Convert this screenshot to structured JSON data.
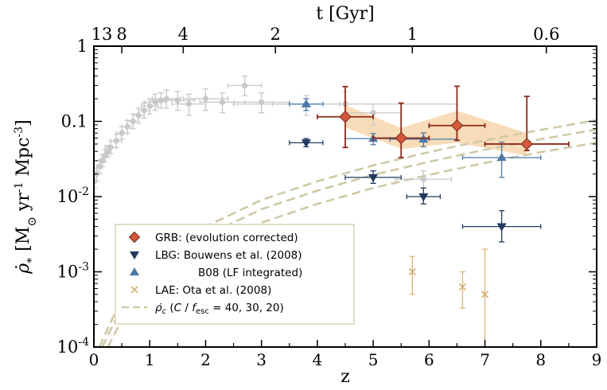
{
  "chart_data": {
    "type": "scatter",
    "xlabel": "z",
    "top_axis_label": "t [Gyr]",
    "ylabel_parts": {
      "lead": "ρ̇",
      "lead_sub": "*",
      "bracket_open": "[M",
      "sun": "⊙",
      "yr": " yr",
      "yr_exp": "-1",
      "mpc": " Mpc",
      "mpc_exp": "-3",
      "bracket_close": "]"
    },
    "xlim": [
      0,
      9
    ],
    "ylim": [
      0.0001,
      1
    ],
    "y_scale": "log",
    "x_ticks": [
      "0",
      "1",
      "2",
      "3",
      "4",
      "5",
      "6",
      "7",
      "8",
      "9"
    ],
    "y_ticks": [
      {
        "value": 0.0001,
        "base": "10",
        "exp": "-4"
      },
      {
        "value": 0.001,
        "base": "10",
        "exp": "-3"
      },
      {
        "value": 0.01,
        "base": "10",
        "exp": "-2"
      },
      {
        "value": 0.1,
        "base": "0.1",
        "exp": ""
      },
      {
        "value": 1,
        "base": "1",
        "exp": ""
      }
    ],
    "top_ticks": [
      {
        "label": "13",
        "z": 0.0
      },
      {
        "label": "8",
        "z": 0.5
      },
      {
        "label": "4",
        "z": 1.6
      },
      {
        "label": "2",
        "z": 3.25
      },
      {
        "label": "1",
        "z": 5.7
      },
      {
        "label": "0.6",
        "z": 8.1
      }
    ],
    "legend": {
      "placement": "bottom-left",
      "entries": [
        {
          "series": "grb",
          "label": "GRB: (evolution corrected)"
        },
        {
          "series": "lbg",
          "label": "LBG:  Bouwens et al. (2008)"
        },
        {
          "series": "b08",
          "label": "B08 (LF integrated)"
        },
        {
          "series": "lae",
          "label": "LAE:  Ota et al. (2008)"
        },
        {
          "series": "critical",
          "label_parts": {
            "sym": "ρ̇",
            "sub": "c",
            "pre": " (",
            "c": "C",
            "slash": " / ",
            "f": "f",
            "fsub": "esc",
            "post": " = 40, 30, 20)"
          }
        }
      ]
    },
    "series": [
      {
        "id": "grb",
        "marker": "diamond",
        "color": "#d4573b",
        "error_color": "#8b2a1a",
        "band_color": "#f7d7b0",
        "points": [
          {
            "x": 4.5,
            "y": 0.115,
            "xerr": [
              0.5,
              0.5
            ],
            "yerr": [
              0.07,
              0.175
            ]
          },
          {
            "x": 5.5,
            "y": 0.06,
            "xerr": [
              0.5,
              0.5
            ],
            "yerr": [
              0.027,
              0.115
            ]
          },
          {
            "x": 6.5,
            "y": 0.088,
            "xerr": [
              0.5,
              0.5
            ],
            "yerr": [
              0.032,
              0.205
            ]
          },
          {
            "x": 7.75,
            "y": 0.05,
            "xerr": [
              0.75,
              0.75
            ],
            "yerr": [
              0.009,
              0.165
            ]
          }
        ],
        "band": [
          {
            "x": 4.5,
            "lo": 0.083,
            "hi": 0.165
          },
          {
            "x": 5.5,
            "lo": 0.043,
            "hi": 0.082
          },
          {
            "x": 6.5,
            "lo": 0.052,
            "hi": 0.138
          },
          {
            "x": 7.75,
            "lo": 0.035,
            "hi": 0.07
          }
        ]
      },
      {
        "id": "lbg",
        "marker": "triangle-down",
        "color": "#1f3a5f",
        "points": [
          {
            "x": 3.8,
            "y": 0.052,
            "xerr": [
              0.3,
              0.3
            ],
            "yerr": [
              0.006,
              0.007
            ]
          },
          {
            "x": 5.0,
            "y": 0.018,
            "xerr": [
              0.5,
              0.5
            ],
            "yerr": [
              0.003,
              0.004
            ]
          },
          {
            "x": 5.9,
            "y": 0.01,
            "xerr": [
              0.3,
              0.3
            ],
            "yerr": [
              0.002,
              0.003
            ]
          },
          {
            "x": 7.3,
            "y": 0.004,
            "xerr": [
              0.7,
              0.7
            ],
            "yerr": [
              0.0015,
              0.0025
            ]
          }
        ]
      },
      {
        "id": "b08",
        "marker": "triangle-up",
        "color": "#4a79a8",
        "points": [
          {
            "x": 3.8,
            "y": 0.17,
            "xerr": [
              0.3,
              0.3
            ],
            "yerr": [
              0.03,
              0.03
            ]
          },
          {
            "x": 5.0,
            "y": 0.059,
            "xerr": [
              0.5,
              0.5
            ],
            "yerr": [
              0.01,
              0.01
            ]
          },
          {
            "x": 5.9,
            "y": 0.058,
            "xerr": [
              0.6,
              0.6
            ],
            "yerr": [
              0.012,
              0.012
            ]
          },
          {
            "x": 7.3,
            "y": 0.033,
            "xerr": [
              0.7,
              0.7
            ],
            "yerr": [
              0.015,
              0.02
            ]
          }
        ]
      },
      {
        "id": "lae",
        "marker": "x",
        "color": "#d9b27a",
        "points": [
          {
            "x": 5.7,
            "y": 0.001,
            "xerr": [
              0,
              0
            ],
            "yerr": [
              0.0005,
              0.0006
            ]
          },
          {
            "x": 6.6,
            "y": 0.00063,
            "xerr": [
              0,
              0
            ],
            "yerr": [
              0.0003,
              0.00037
            ]
          },
          {
            "x": 7.0,
            "y": 0.0005,
            "xerr": [
              0,
              0
            ],
            "yerr": [
              0.0004,
              0.0015
            ]
          }
        ]
      },
      {
        "id": "critical",
        "style": "dashed",
        "color": "#cfc9a6",
        "curves": [
          {
            "C_over_fesc": 40,
            "points": [
              [
                0.1,
                0.0001
              ],
              [
                0.5,
                0.00045
              ],
              [
                1,
                0.0012
              ],
              [
                2,
                0.004
              ],
              [
                3,
                0.009
              ],
              [
                4,
                0.016
              ],
              [
                5,
                0.026
              ],
              [
                6,
                0.039
              ],
              [
                7,
                0.056
              ],
              [
                8,
                0.077
              ],
              [
                9,
                0.104
              ]
            ]
          },
          {
            "C_over_fesc": 30,
            "points": [
              [
                0.15,
                0.0001
              ],
              [
                0.5,
                0.00034
              ],
              [
                1,
                0.0009
              ],
              [
                2,
                0.003
              ],
              [
                3,
                0.0068
              ],
              [
                4,
                0.012
              ],
              [
                5,
                0.0195
              ],
              [
                6,
                0.029
              ],
              [
                7,
                0.042
              ],
              [
                8,
                0.058
              ],
              [
                9,
                0.078
              ]
            ]
          },
          {
            "C_over_fesc": 20,
            "points": [
              [
                0.25,
                0.0001
              ],
              [
                0.5,
                0.00023
              ],
              [
                1,
                0.0006
              ],
              [
                2,
                0.002
              ],
              [
                3,
                0.0045
              ],
              [
                4,
                0.008
              ],
              [
                5,
                0.013
              ],
              [
                6,
                0.0195
              ],
              [
                7,
                0.028
              ],
              [
                8,
                0.039
              ],
              [
                9,
                0.052
              ]
            ]
          }
        ]
      },
      {
        "id": "compilation",
        "marker": "circle",
        "color": "#c8c8c8",
        "points": [
          {
            "x": 0.01,
            "y": 0.016,
            "xerr": [
              0.01,
              0.02
            ],
            "yerr": [
              0.003,
              0.003
            ]
          },
          {
            "x": 0.05,
            "y": 0.02,
            "xerr": [
              0.03,
              0.03
            ],
            "yerr": [
              0.004,
              0.004
            ]
          },
          {
            "x": 0.1,
            "y": 0.025,
            "xerr": [
              0.05,
              0.05
            ],
            "yerr": [
              0.005,
              0.005
            ]
          },
          {
            "x": 0.15,
            "y": 0.03,
            "xerr": [
              0.05,
              0.05
            ],
            "yerr": [
              0.005,
              0.006
            ]
          },
          {
            "x": 0.2,
            "y": 0.035,
            "xerr": [
              0.05,
              0.05
            ],
            "yerr": [
              0.006,
              0.007
            ]
          },
          {
            "x": 0.25,
            "y": 0.04,
            "xerr": [
              0.05,
              0.05
            ],
            "yerr": [
              0.006,
              0.008
            ]
          },
          {
            "x": 0.3,
            "y": 0.045,
            "xerr": [
              0.1,
              0.1
            ],
            "yerr": [
              0.008,
              0.01
            ]
          },
          {
            "x": 0.4,
            "y": 0.055,
            "xerr": [
              0.1,
              0.1
            ],
            "yerr": [
              0.01,
              0.012
            ]
          },
          {
            "x": 0.5,
            "y": 0.07,
            "xerr": [
              0.1,
              0.1
            ],
            "yerr": [
              0.012,
              0.015
            ]
          },
          {
            "x": 0.6,
            "y": 0.085,
            "xerr": [
              0.1,
              0.1
            ],
            "yerr": [
              0.015,
              0.018
            ]
          },
          {
            "x": 0.7,
            "y": 0.1,
            "xerr": [
              0.1,
              0.1
            ],
            "yerr": [
              0.02,
              0.025
            ]
          },
          {
            "x": 0.8,
            "y": 0.12,
            "xerr": [
              0.1,
              0.1
            ],
            "yerr": [
              0.025,
              0.03
            ]
          },
          {
            "x": 0.9,
            "y": 0.14,
            "xerr": [
              0.1,
              0.1
            ],
            "yerr": [
              0.03,
              0.035
            ]
          },
          {
            "x": 1.0,
            "y": 0.16,
            "xerr": [
              0.15,
              0.15
            ],
            "yerr": [
              0.035,
              0.04
            ]
          },
          {
            "x": 1.1,
            "y": 0.18,
            "xerr": [
              0.2,
              0.2
            ],
            "yerr": [
              0.04,
              0.05
            ]
          },
          {
            "x": 1.2,
            "y": 0.19,
            "xerr": [
              0.2,
              0.2
            ],
            "yerr": [
              0.04,
              0.05
            ]
          },
          {
            "x": 1.3,
            "y": 0.2,
            "xerr": [
              0.25,
              0.25
            ],
            "yerr": [
              0.05,
              0.06
            ]
          },
          {
            "x": 1.5,
            "y": 0.19,
            "xerr": [
              0.3,
              0.3
            ],
            "yerr": [
              0.05,
              0.06
            ]
          },
          {
            "x": 1.7,
            "y": 0.17,
            "xerr": [
              0.3,
              0.3
            ],
            "yerr": [
              0.05,
              0.06
            ]
          },
          {
            "x": 2.0,
            "y": 0.2,
            "xerr": [
              0.4,
              0.4
            ],
            "yerr": [
              0.06,
              0.07
            ]
          },
          {
            "x": 2.3,
            "y": 0.18,
            "xerr": [
              0.4,
              0.4
            ],
            "yerr": [
              0.05,
              0.06
            ]
          },
          {
            "x": 2.7,
            "y": 0.3,
            "xerr": [
              0.3,
              0.3
            ],
            "yerr": [
              0.08,
              0.1
            ]
          },
          {
            "x": 3.0,
            "y": 0.18,
            "xerr": [
              0.5,
              0.5
            ],
            "yerr": [
              0.05,
              0.06
            ]
          },
          {
            "x": 3.8,
            "y": 0.17,
            "xerr": [
              0.6,
              0.6
            ],
            "yerr": [
              0.05,
              0.05
            ]
          },
          {
            "x": 4.5,
            "y": 0.17,
            "xerr": [
              2.0,
              2.0
            ],
            "yerr": [
              0.06,
              0.08
            ]
          },
          {
            "x": 5.0,
            "y": 0.13,
            "xerr": [
              0.5,
              0.5
            ],
            "yerr": [
              0.04,
              0.04
            ]
          },
          {
            "x": 5.9,
            "y": 0.017,
            "xerr": [
              0.5,
              0.5
            ],
            "yerr": [
              0.004,
              0.005
            ]
          }
        ]
      }
    ]
  }
}
